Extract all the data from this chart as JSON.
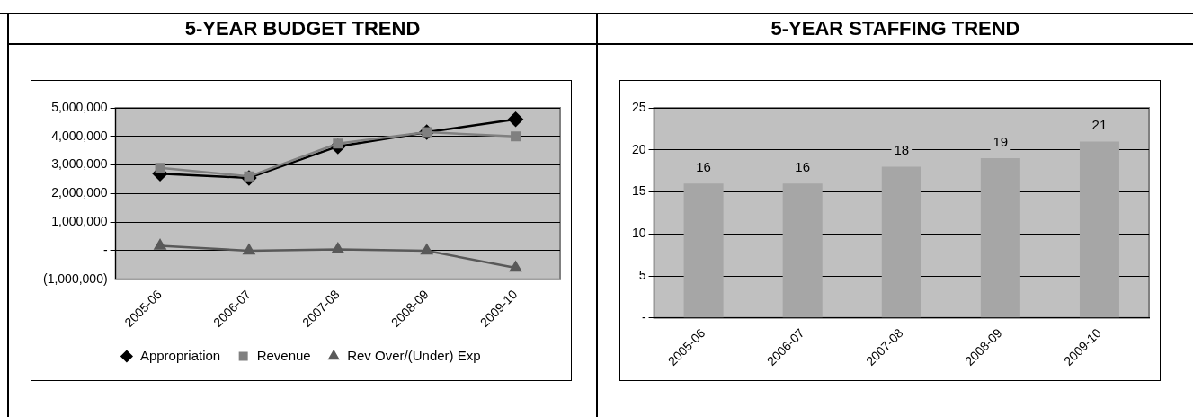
{
  "chart_data": [
    {
      "type": "line",
      "title": "5-YEAR BUDGET TREND",
      "categories": [
        "2005-06",
        "2006-07",
        "2007-08",
        "2008-09",
        "2009-10"
      ],
      "series": [
        {
          "name": "Appropriation",
          "color": "#000000",
          "marker": "diamond",
          "values": [
            2700000,
            2550000,
            3650000,
            4150000,
            4600000
          ]
        },
        {
          "name": "Revenue",
          "color": "#808080",
          "marker": "square",
          "values": [
            2900000,
            2600000,
            3750000,
            4150000,
            4000000
          ]
        },
        {
          "name": "Rev Over/(Under) Exp",
          "color": "#595959",
          "marker": "triangle",
          "values": [
            170000,
            0,
            50000,
            0,
            -600000
          ]
        }
      ],
      "ylim": [
        -1000000,
        5000000
      ],
      "yticks": [
        {
          "value": -1000000,
          "label": "(1,000,000)"
        },
        {
          "value": 0,
          "label": "-"
        },
        {
          "value": 1000000,
          "label": "1,000,000"
        },
        {
          "value": 2000000,
          "label": "2,000,000"
        },
        {
          "value": 3000000,
          "label": "3,000,000"
        },
        {
          "value": 4000000,
          "label": "4,000,000"
        },
        {
          "value": 5000000,
          "label": "5,000,000"
        }
      ],
      "grid": "y",
      "legend": "bottom"
    },
    {
      "type": "bar",
      "title": "5-YEAR STAFFING TREND",
      "categories": [
        "2005-06",
        "2006-07",
        "2007-08",
        "2008-09",
        "2009-10"
      ],
      "color": "#a6a6a6",
      "values": [
        16,
        16,
        18,
        19,
        21
      ],
      "ylim": [
        0,
        25
      ],
      "yticks": [
        {
          "value": 0,
          "label": "-"
        },
        5,
        10,
        15,
        20,
        25
      ],
      "grid": "y",
      "data_labels": true,
      "legend": false
    }
  ]
}
